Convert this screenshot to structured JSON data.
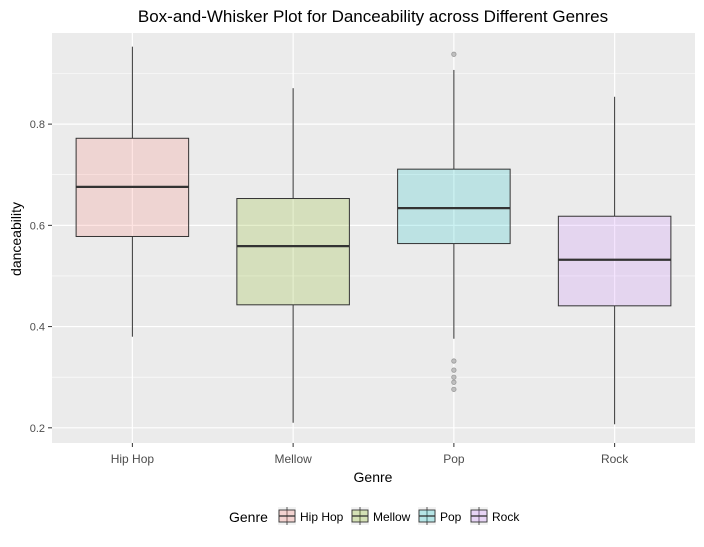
{
  "chart_data": {
    "type": "box",
    "title": "Box-and-Whisker Plot for Danceability across Different Genres",
    "xlabel": "Genre",
    "ylabel": "danceability",
    "categories": [
      "Hip Hop",
      "Mellow",
      "Pop",
      "Rock"
    ],
    "ylim": [
      0.17,
      0.98
    ],
    "yticks": [
      0.2,
      0.4,
      0.6,
      0.8
    ],
    "ytick_labels": [
      "0.2",
      "0.4",
      "0.6",
      "0.8"
    ],
    "grid": true,
    "legend": {
      "title": "Genre",
      "placement": "bottom",
      "entries": [
        "Hip Hop",
        "Mellow",
        "Pop",
        "Rock"
      ]
    },
    "colors": {
      "panel_bg": "#EBEBEB",
      "grid": "#FFFFFF",
      "Hip Hop": "#F8766D",
      "Mellow": "#7CAE00",
      "Pop": "#00BFC4",
      "Rock": "#C77CFF"
    },
    "series": [
      {
        "name": "Hip Hop",
        "min": 0.38,
        "q1": 0.578,
        "median": 0.676,
        "q3": 0.772,
        "max": 0.953,
        "outliers": []
      },
      {
        "name": "Mellow",
        "min": 0.21,
        "q1": 0.443,
        "median": 0.559,
        "q3": 0.653,
        "max": 0.871,
        "outliers": []
      },
      {
        "name": "Pop",
        "min": 0.376,
        "q1": 0.564,
        "median": 0.634,
        "q3": 0.711,
        "max": 0.907,
        "outliers": [
          0.938,
          0.332,
          0.314,
          0.3,
          0.29,
          0.276
        ]
      },
      {
        "name": "Rock",
        "min": 0.207,
        "q1": 0.441,
        "median": 0.532,
        "q3": 0.618,
        "max": 0.854,
        "outliers": []
      }
    ]
  }
}
